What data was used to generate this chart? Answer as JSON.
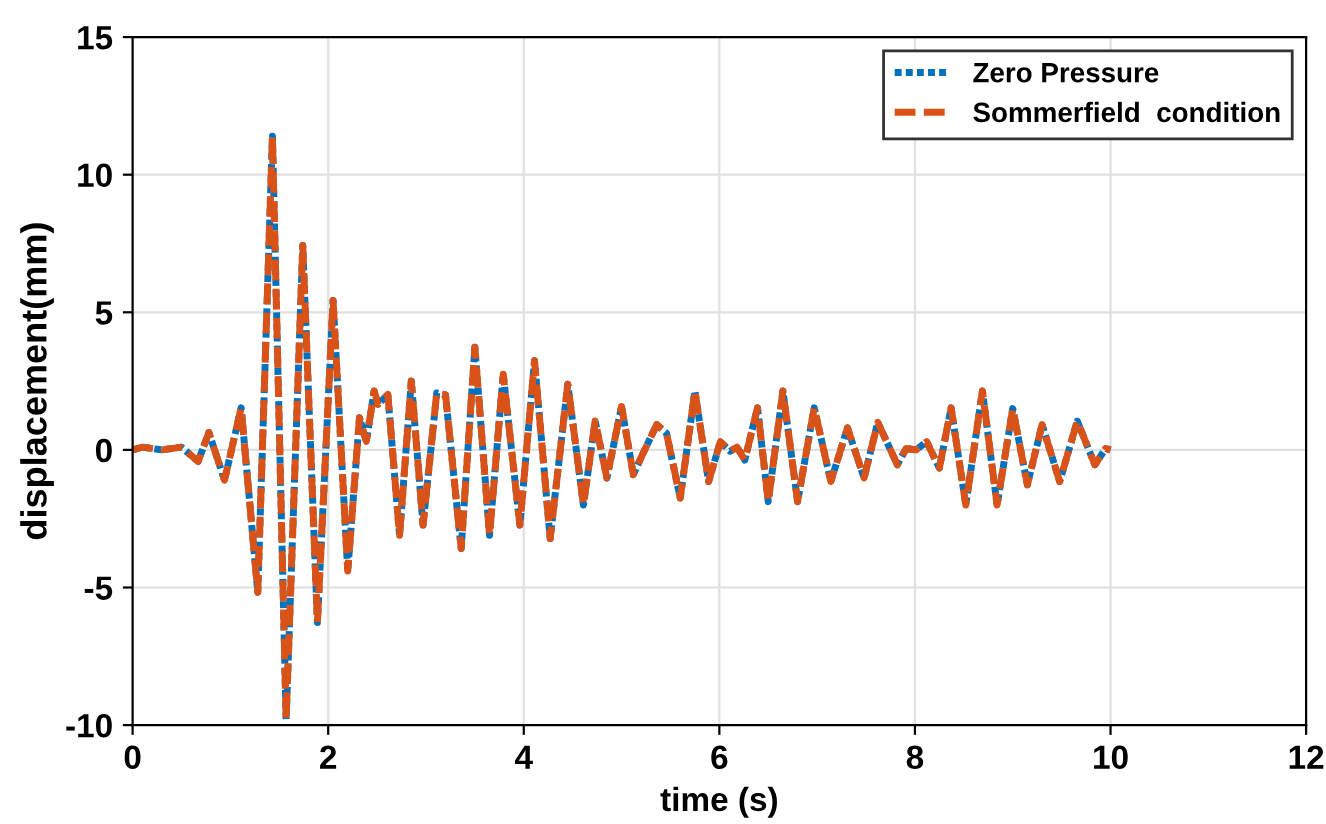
{
  "chart_data": {
    "type": "line",
    "xlabel": "time (s)",
    "ylabel": "displacement(mm)",
    "x": [
      0,
      0.1,
      0.3,
      0.5,
      0.67,
      0.78,
      0.94,
      1.11,
      1.28,
      1.43,
      1.57,
      1.74,
      1.89,
      2.05,
      2.2,
      2.32,
      2.39,
      2.47,
      2.51,
      2.61,
      2.73,
      2.85,
      2.97,
      3.11,
      3.2,
      3.36,
      3.5,
      3.65,
      3.79,
      3.96,
      4.11,
      4.27,
      4.45,
      4.61,
      4.73,
      4.85,
      5.0,
      5.12,
      5.21,
      5.36,
      5.46,
      5.6,
      5.75,
      5.89,
      6.01,
      6.11,
      6.18,
      6.26,
      6.39,
      6.5,
      6.65,
      6.8,
      6.97,
      7.14,
      7.31,
      7.48,
      7.62,
      7.82,
      7.91,
      8.01,
      8.12,
      8.25,
      8.37,
      8.52,
      8.69,
      8.84,
      9.0,
      9.15,
      9.3,
      9.48,
      9.66,
      9.84,
      9.95,
      10.0
    ],
    "series": [
      {
        "name": "Zero Pressure",
        "color": "#0072bd",
        "line_style": "dotted",
        "values": [
          0,
          0.1,
          0,
          0.1,
          -0.42,
          0.63,
          -1.1,
          1.53,
          -5.17,
          11.4,
          -9.8,
          7.43,
          -6.27,
          5.43,
          -4.4,
          1.17,
          0.31,
          2.14,
          1.65,
          2.02,
          -3.1,
          2.5,
          -2.73,
          2.07,
          2.0,
          -3.58,
          3.73,
          -3.1,
          2.75,
          -2.73,
          3.24,
          -3.22,
          2.39,
          -2.0,
          1.05,
          -1.02,
          1.58,
          -0.9,
          -0.2,
          0.92,
          0.6,
          -1.75,
          2.14,
          -1.15,
          0.3,
          -0.05,
          0.1,
          -0.37,
          1.53,
          -1.88,
          2.14,
          -1.88,
          1.53,
          -1.15,
          0.8,
          -1.02,
          1.0,
          -0.54,
          0.05,
          0,
          0.3,
          -0.66,
          1.53,
          -2.0,
          2.14,
          -2.0,
          1.5,
          -1.27,
          0.92,
          -1.15,
          1.05,
          -0.54,
          0.05,
          0
        ]
      },
      {
        "name": "Sommerfield  condition",
        "color": "#d95319",
        "line_style": "dashed",
        "values": [
          0,
          0.1,
          0,
          0.1,
          -0.42,
          0.63,
          -1.1,
          1.53,
          -5.17,
          11.4,
          -9.8,
          7.43,
          -6.27,
          5.43,
          -4.4,
          1.17,
          0.31,
          2.14,
          1.65,
          2.02,
          -3.1,
          2.5,
          -2.73,
          2.07,
          2.0,
          -3.58,
          3.73,
          -3.1,
          2.75,
          -2.73,
          3.24,
          -3.22,
          2.39,
          -2.0,
          1.05,
          -1.02,
          1.58,
          -0.9,
          -0.2,
          0.92,
          0.6,
          -1.75,
          2.14,
          -1.15,
          0.3,
          -0.05,
          0.1,
          -0.37,
          1.53,
          -1.88,
          2.14,
          -1.88,
          1.53,
          -1.15,
          0.8,
          -1.02,
          1.0,
          -0.54,
          0.05,
          0,
          0.3,
          -0.66,
          1.53,
          -2.0,
          2.14,
          -2.0,
          1.5,
          -1.27,
          0.92,
          -1.15,
          1.05,
          -0.54,
          0.05,
          0
        ]
      }
    ],
    "xlim": [
      0,
      12
    ],
    "xticks": [
      0,
      2,
      4,
      6,
      8,
      10,
      12
    ],
    "ylim": [
      -10,
      15
    ],
    "yticks": [
      -10,
      -5,
      0,
      5,
      10,
      15
    ],
    "grid": true,
    "legend": "top right"
  }
}
